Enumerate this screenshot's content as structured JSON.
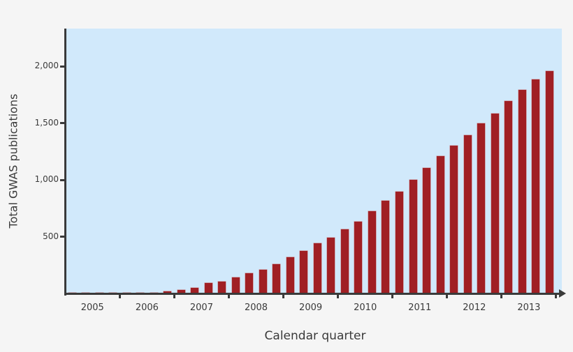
{
  "chart_data": {
    "type": "bar",
    "title": "",
    "xlabel": "Calendar quarter",
    "ylabel": "Total GWAS publications",
    "ylim": [
      0,
      2350
    ],
    "yticks": [
      500,
      1000,
      1500,
      2000
    ],
    "ytick_labels": [
      "500",
      "1,000",
      "1,500",
      "2,000"
    ],
    "grid": false,
    "legend": null,
    "year_labels": [
      "2005",
      "2006",
      "2007",
      "2008",
      "2009",
      "2010",
      "2011",
      "2012",
      "2013"
    ],
    "categories": [
      "2005 Q1",
      "2005 Q2",
      "2005 Q3",
      "2005 Q4",
      "2006 Q1",
      "2006 Q2",
      "2006 Q3",
      "2006 Q4",
      "2007 Q1",
      "2007 Q2",
      "2007 Q3",
      "2007 Q4",
      "2008 Q1",
      "2008 Q2",
      "2008 Q3",
      "2008 Q4",
      "2009 Q1",
      "2009 Q2",
      "2009 Q3",
      "2009 Q4",
      "2010 Q1",
      "2010 Q2",
      "2010 Q3",
      "2010 Q4",
      "2011 Q1",
      "2011 Q2",
      "2011 Q3",
      "2011 Q4",
      "2012 Q1",
      "2012 Q2",
      "2012 Q3",
      "2012 Q4",
      "2013 Q1",
      "2013 Q2",
      "2013 Q3",
      "2013 Q4"
    ],
    "values": [
      2,
      2,
      2,
      3,
      4,
      6,
      9,
      18,
      28,
      52,
      95,
      107,
      142,
      175,
      207,
      259,
      320,
      377,
      439,
      492,
      566,
      633,
      725,
      818,
      896,
      997,
      1103,
      1206,
      1302,
      1394,
      1498,
      1584,
      1692,
      1793,
      1885,
      1958
    ],
    "colors": {
      "bar": "#a01f24",
      "plot_background": "#d1e9fb",
      "page_background": "#f5f5f5",
      "axis": "#3a3a3a"
    }
  }
}
